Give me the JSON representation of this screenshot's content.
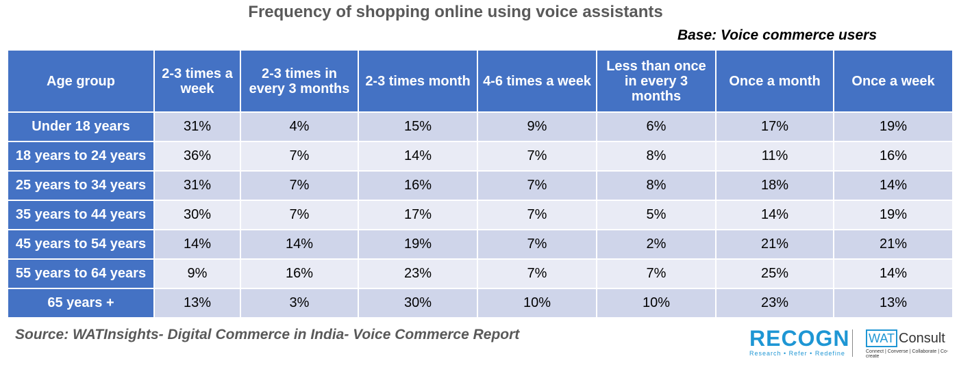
{
  "title": "Frequency of shopping online using voice assistants",
  "base": "Base: Voice commerce users",
  "source": "Source: WATInsights- Digital Commerce in India- Voice Commerce Report",
  "logos": {
    "recogn": "RECOGN",
    "recogn_tagline": "Research • Refer • Redefine",
    "wat": "WAT",
    "consult": "Consult",
    "wat_tagline": "Connect | Converse | Collaborate | Co-create"
  },
  "colors": {
    "header": "#4472C4",
    "row_dark": "#CFD5EA",
    "row_light": "#E9EBF5"
  },
  "chart_data": {
    "type": "table",
    "columns": [
      "Age group",
      "2-3 times a week",
      "2-3 times in every 3 months",
      "2-3 times month",
      "4-6 times a week",
      "Less than once in every 3 months",
      "Once a month",
      "Once a week"
    ],
    "rows": [
      [
        "Under 18 years",
        "31%",
        "4%",
        "15%",
        "9%",
        "6%",
        "17%",
        "19%"
      ],
      [
        "18 years to 24 years",
        "36%",
        "7%",
        "14%",
        "7%",
        "8%",
        "11%",
        "16%"
      ],
      [
        "25 years to 34 years",
        "31%",
        "7%",
        "16%",
        "7%",
        "8%",
        "18%",
        "14%"
      ],
      [
        "35 years to 44 years",
        "30%",
        "7%",
        "17%",
        "7%",
        "5%",
        "14%",
        "19%"
      ],
      [
        "45 years to 54 years",
        "14%",
        "14%",
        "19%",
        "7%",
        "2%",
        "21%",
        "21%"
      ],
      [
        "55 years to 64 years",
        "9%",
        "16%",
        "23%",
        "7%",
        "7%",
        "25%",
        "14%"
      ],
      [
        "65 years +",
        "13%",
        "3%",
        "30%",
        "10%",
        "10%",
        "23%",
        "13%"
      ]
    ]
  }
}
